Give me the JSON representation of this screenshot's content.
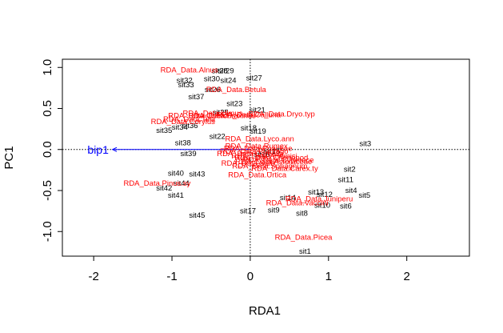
{
  "chart_data": {
    "type": "scatter",
    "xlabel": "RDA1",
    "ylabel": "PC1",
    "xlim": [
      -2.4,
      2.8
    ],
    "ylim": [
      -1.3,
      1.1
    ],
    "x_ticks": [
      -2,
      -1,
      0,
      1,
      2
    ],
    "y_ticks": [
      -1.0,
      -0.5,
      0.0,
      0.5,
      1.0
    ],
    "y_tick_labels": [
      "-1.0",
      "-0.5",
      "0.0",
      "0.5",
      "1.0"
    ],
    "grid": false,
    "reference_lines": {
      "x": 0,
      "y": 0,
      "style": "dotted"
    },
    "sites": [
      {
        "label": "sit1",
        "x": 0.7,
        "y": -1.24
      },
      {
        "label": "sit3",
        "x": 1.47,
        "y": 0.07
      },
      {
        "label": "sit2",
        "x": 1.27,
        "y": -0.24
      },
      {
        "label": "sit11",
        "x": 1.22,
        "y": -0.37
      },
      {
        "label": "sit4",
        "x": 1.29,
        "y": -0.5
      },
      {
        "label": "sit5",
        "x": 1.46,
        "y": -0.56
      },
      {
        "label": "sit6",
        "x": 1.22,
        "y": -0.69
      },
      {
        "label": "sit10",
        "x": 0.92,
        "y": -0.68
      },
      {
        "label": "sit12",
        "x": 0.95,
        "y": -0.55
      },
      {
        "label": "sit13",
        "x": 0.84,
        "y": -0.52
      },
      {
        "label": "sit14",
        "x": 0.48,
        "y": -0.59
      },
      {
        "label": "sit8",
        "x": 0.66,
        "y": -0.78
      },
      {
        "label": "sit9",
        "x": 0.3,
        "y": -0.74
      },
      {
        "label": "sit17",
        "x": -0.03,
        "y": -0.75
      },
      {
        "label": "sit45",
        "x": -0.68,
        "y": -0.8
      },
      {
        "label": "sit41",
        "x": -0.95,
        "y": -0.56
      },
      {
        "label": "sit42",
        "x": -1.1,
        "y": -0.47
      },
      {
        "label": "sit44",
        "x": -0.88,
        "y": -0.41
      },
      {
        "label": "sit43",
        "x": -0.68,
        "y": -0.3
      },
      {
        "label": "sit40",
        "x": -0.95,
        "y": -0.29
      },
      {
        "label": "sit39",
        "x": -0.79,
        "y": -0.05
      },
      {
        "label": "sit38",
        "x": -0.86,
        "y": 0.08
      },
      {
        "label": "sit35",
        "x": -1.1,
        "y": 0.23
      },
      {
        "label": "sit34",
        "x": -0.9,
        "y": 0.27
      },
      {
        "label": "sit36",
        "x": -0.77,
        "y": 0.29
      },
      {
        "label": "sit37",
        "x": -0.69,
        "y": 0.64
      },
      {
        "label": "sit32",
        "x": -0.84,
        "y": 0.84
      },
      {
        "label": "sit33",
        "x": -0.82,
        "y": 0.79
      },
      {
        "label": "sit30",
        "x": -0.49,
        "y": 0.86
      },
      {
        "label": "sit24",
        "x": -0.28,
        "y": 0.84
      },
      {
        "label": "sit26",
        "x": -0.48,
        "y": 0.73
      },
      {
        "label": "sit27",
        "x": 0.05,
        "y": 0.87
      },
      {
        "label": "sit28",
        "x": -0.39,
        "y": 0.96
      },
      {
        "label": "sit29",
        "x": -0.31,
        "y": 0.96
      },
      {
        "label": "sit23",
        "x": -0.2,
        "y": 0.56
      },
      {
        "label": "sit21",
        "x": 0.09,
        "y": 0.48
      },
      {
        "label": "sit25",
        "x": -0.38,
        "y": 0.45
      },
      {
        "label": "sit22",
        "x": -0.42,
        "y": 0.16
      },
      {
        "label": "sit19",
        "x": 0.1,
        "y": 0.22
      },
      {
        "label": "sit18",
        "x": -0.02,
        "y": 0.26
      },
      {
        "label": "sit16",
        "x": 0.15,
        "y": -0.06
      },
      {
        "label": "sit15",
        "x": 0.28,
        "y": -0.02
      }
    ],
    "species": [
      {
        "label": "RDA_Data.Picea",
        "x": 0.68,
        "y": -1.07
      },
      {
        "label": "RDA_Data.Juniperu",
        "x": 0.88,
        "y": -0.6
      },
      {
        "label": "RDA_Data.Vaccini",
        "x": 0.6,
        "y": -0.65
      },
      {
        "label": "RDA_Data.Carex.ty",
        "x": 0.44,
        "y": -0.23
      },
      {
        "label": "RDA_Data.Urtica",
        "x": 0.09,
        "y": -0.31
      },
      {
        "label": "RDA_Data.Pinus.sy",
        "x": -1.19,
        "y": -0.41
      },
      {
        "label": "RDA_Data.Alnus",
        "x": -0.78,
        "y": 0.97
      },
      {
        "label": "RDA_Data.Betula",
        "x": -0.18,
        "y": 0.73
      },
      {
        "label": "RDA_Data.Dryo.typ",
        "x": 0.4,
        "y": 0.43
      },
      {
        "label": "RDA_Data.Corylus",
        "x": -0.86,
        "y": 0.34
      },
      {
        "label": "RDA_Data.Quercus",
        "x": -0.62,
        "y": 0.41
      },
      {
        "label": "RDA_Data.Tilia",
        "x": -0.78,
        "y": 0.37
      },
      {
        "label": "RDA_Data.Ulmus",
        "x": -0.48,
        "y": 0.44
      },
      {
        "label": "RDA_Data.Fraxinus",
        "x": -0.36,
        "y": 0.41
      },
      {
        "label": "RDA_Data.Calluna",
        "x": -0.02,
        "y": 0.42
      },
      {
        "label": "RDA_Data.Lyco.ann",
        "x": 0.12,
        "y": 0.13
      },
      {
        "label": "RDA_Data.Rumex",
        "x": 0.08,
        "y": 0.04
      },
      {
        "label": "RDA_Data.Poaceae",
        "x": 0.1,
        "y": 0.01
      },
      {
        "label": "RDA_Data.Plantago",
        "x": 0.05,
        "y": -0.02
      },
      {
        "label": "RDA_Data.Cerealia",
        "x": 0.0,
        "y": -0.05
      },
      {
        "label": "RDA_Data.Artemisi",
        "x": 0.18,
        "y": -0.08
      },
      {
        "label": "RDA_Data.Chenopod",
        "x": 0.27,
        "y": -0.1
      },
      {
        "label": "RDA_Data.Asteraceae",
        "x": 0.3,
        "y": -0.15
      },
      {
        "label": "RDA_Data.Salix",
        "x": -0.02,
        "y": -0.17
      },
      {
        "label": "RDA_Data.Sphagnum",
        "x": 0.25,
        "y": -0.2
      },
      {
        "label": "RDA_Data.Cyperace",
        "x": 0.36,
        "y": -0.13
      }
    ],
    "biplot_arrows": [
      {
        "label": "bip1",
        "x": -1.76,
        "y": 0.0
      }
    ]
  },
  "colors": {
    "sites": "#000000",
    "species": "#ff0000",
    "biplot": "#0000ff",
    "axes": "#000000"
  }
}
